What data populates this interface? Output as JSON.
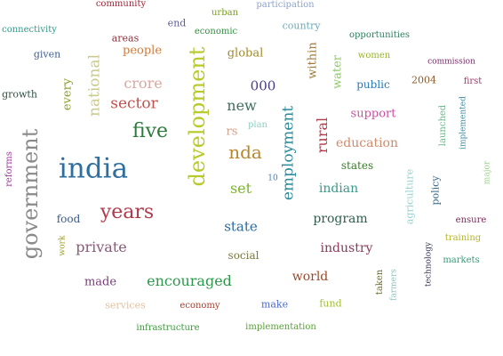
{
  "words": [
    {
      "text": "community",
      "color": "#9b2335"
    },
    {
      "text": "participation",
      "color": "#8fa3c9"
    },
    {
      "text": "urban",
      "color": "#7a9a2a"
    },
    {
      "text": "end",
      "color": "#5b5b9a"
    },
    {
      "text": "country",
      "color": "#6ea9b5"
    },
    {
      "text": "connectivity",
      "color": "#2a9a8a"
    },
    {
      "text": "economic",
      "color": "#2f8f3f"
    },
    {
      "text": "areas",
      "color": "#8a2f3a"
    },
    {
      "text": "opportunities",
      "color": "#2f7f5f"
    },
    {
      "text": "given",
      "color": "#3f5f8f"
    },
    {
      "text": "people",
      "color": "#d07a3a"
    },
    {
      "text": "global",
      "color": "#a08a2a"
    },
    {
      "text": "women",
      "color": "#9ab52a"
    },
    {
      "text": "commission",
      "color": "#7a2a6a"
    },
    {
      "text": "national",
      "color": "#c9c98a"
    },
    {
      "text": "development",
      "color": "#b8c92a"
    },
    {
      "text": "within",
      "color": "#a07a3a"
    },
    {
      "text": "water",
      "color": "#8fc96a"
    },
    {
      "text": "2004",
      "color": "#8a5a2a"
    },
    {
      "text": "first",
      "color": "#9a3a6a"
    },
    {
      "text": "growth",
      "color": "#2f4f3f"
    },
    {
      "text": "crore",
      "color": "#d8a8a0"
    },
    {
      "text": "000",
      "color": "#4a3a8a"
    },
    {
      "text": "public",
      "color": "#2a7ab5"
    },
    {
      "text": "every",
      "color": "#8aa02a"
    },
    {
      "text": "sector",
      "color": "#c0504d"
    },
    {
      "text": "new",
      "color": "#3f6f5f"
    },
    {
      "text": "launched",
      "color": "#6ab58a"
    },
    {
      "text": "implemented",
      "color": "#3a8aa0"
    },
    {
      "text": "support",
      "color": "#c94fa0"
    },
    {
      "text": "government",
      "color": "#8a8a8a"
    },
    {
      "text": "plan",
      "color": "#8fd0c0"
    },
    {
      "text": "employment",
      "color": "#2a8a9a"
    },
    {
      "text": "rural",
      "color": "#b03a4a"
    },
    {
      "text": "five",
      "color": "#2a7a3a"
    },
    {
      "text": "rs",
      "color": "#d0a08a"
    },
    {
      "text": "education",
      "color": "#d08a6a"
    },
    {
      "text": "reforms",
      "color": "#9a3a9a"
    },
    {
      "text": "india",
      "color": "#2f6f9f"
    },
    {
      "text": "nda",
      "color": "#b8862a"
    },
    {
      "text": "states",
      "color": "#3a7a2a"
    },
    {
      "text": "major",
      "color": "#9ad08a"
    },
    {
      "text": "agriculture",
      "color": "#9ad0d0"
    },
    {
      "text": "policy",
      "color": "#3a6a8a"
    },
    {
      "text": "10",
      "color": "#4a7ab5"
    },
    {
      "text": "set",
      "color": "#7ab52a"
    },
    {
      "text": "indian",
      "color": "#3a9a8a"
    },
    {
      "text": "years",
      "color": "#b03a4a"
    },
    {
      "text": "food",
      "color": "#3a5a8a"
    },
    {
      "text": "program",
      "color": "#2f5f4f"
    },
    {
      "text": "ensure",
      "color": "#7a2a5a"
    },
    {
      "text": "state",
      "color": "#2a6a9a"
    },
    {
      "text": "work",
      "color": "#a0a02a"
    },
    {
      "text": "technology",
      "color": "#3a3a5a"
    },
    {
      "text": "training",
      "color": "#b5b52a"
    },
    {
      "text": "private",
      "color": "#8a5a7a"
    },
    {
      "text": "industry",
      "color": "#8a3a5a"
    },
    {
      "text": "markets",
      "color": "#3a9a7a"
    },
    {
      "text": "social",
      "color": "#7a7a3a"
    },
    {
      "text": "taken",
      "color": "#6a6a2a"
    },
    {
      "text": "farmers",
      "color": "#8ac0c0"
    },
    {
      "text": "made",
      "color": "#7a3a7a"
    },
    {
      "text": "encouraged",
      "color": "#2a9a4a"
    },
    {
      "text": "world",
      "color": "#9a4a2a"
    },
    {
      "text": "services",
      "color": "#e0c0a0"
    },
    {
      "text": "economy",
      "color": "#b03a2a"
    },
    {
      "text": "make",
      "color": "#4a6ad0"
    },
    {
      "text": "fund",
      "color": "#a0c02a"
    },
    {
      "text": "infrastructure",
      "color": "#3a9a3a"
    },
    {
      "text": "implementation",
      "color": "#5aa03a"
    }
  ]
}
